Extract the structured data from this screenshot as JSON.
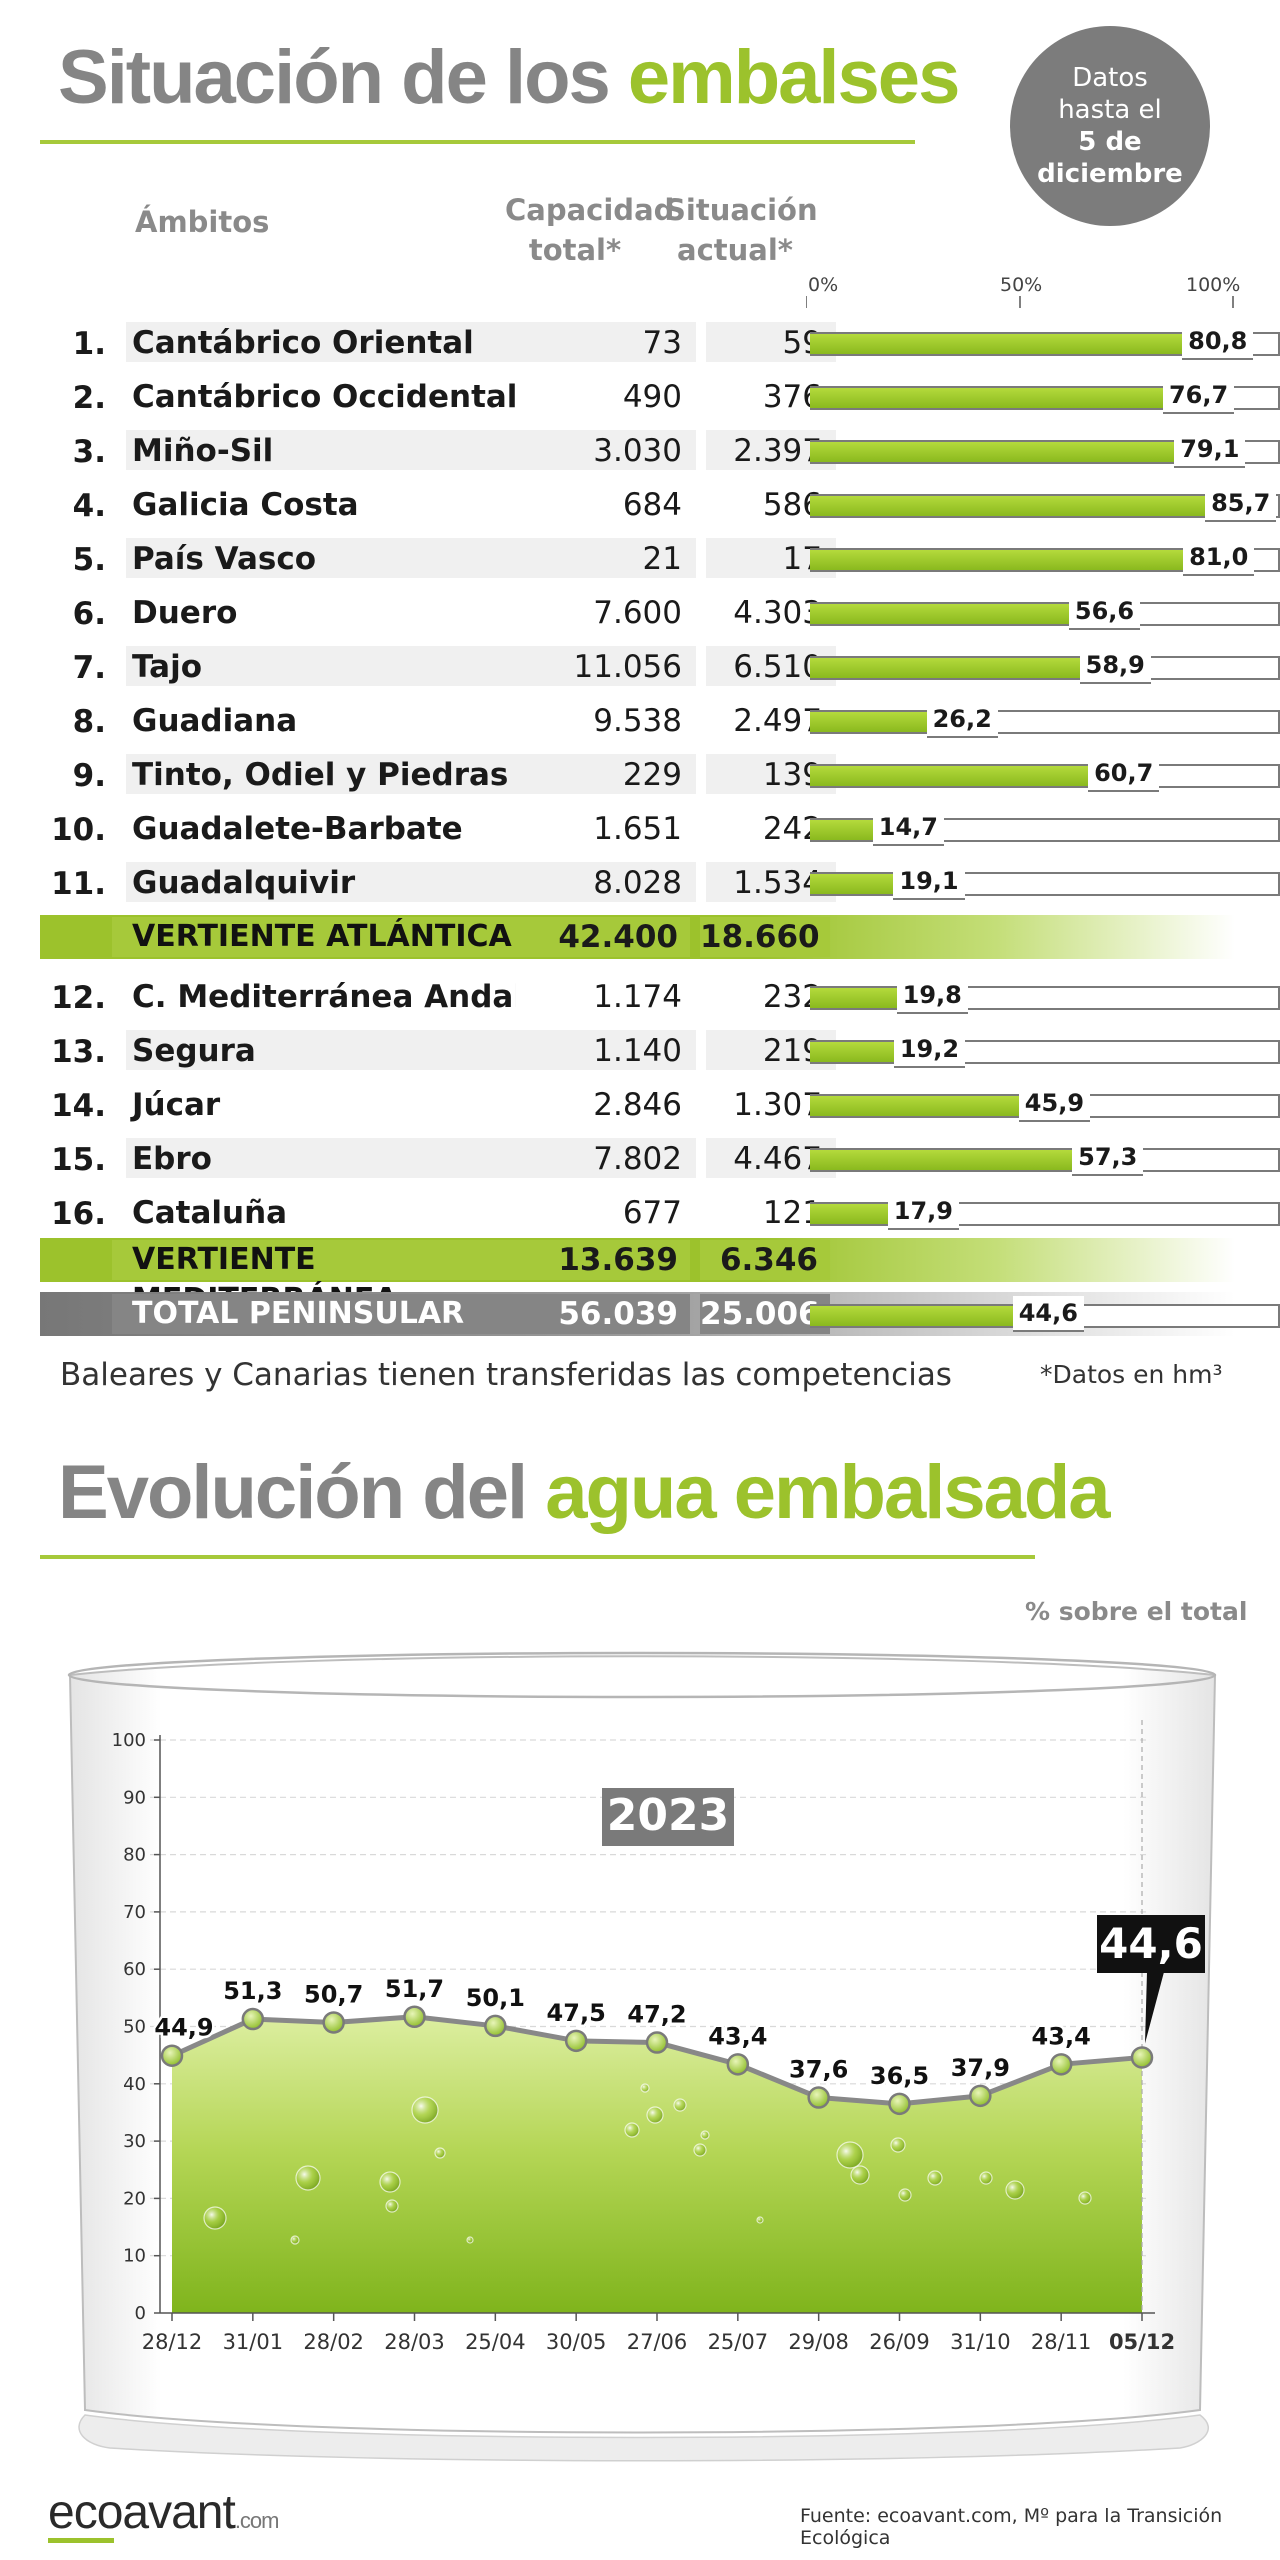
{
  "header": {
    "title_gray": "Situación de los",
    "title_green": "embalses",
    "badge_line1": "Datos",
    "badge_line2": "hasta el",
    "badge_line3": "5 de",
    "badge_line4": "diciembre"
  },
  "table": {
    "col_ambitos": "Ámbitos",
    "col_capacidad_1": "Capacidad",
    "col_capacidad_2": "total*",
    "col_situacion_1": "Situación",
    "col_situacion_2": "actual*",
    "axis_0": "0%",
    "axis_50": "50%",
    "axis_100": "100%",
    "rows": [
      {
        "num": "1.",
        "name": "Cantábrico Oriental",
        "cap": "73",
        "act": "59",
        "pct": 80.8,
        "pct_label": "80,8"
      },
      {
        "num": "2.",
        "name": "Cantábrico Occidental",
        "cap": "490",
        "act": "376",
        "pct": 76.7,
        "pct_label": "76,7"
      },
      {
        "num": "3.",
        "name": "Miño-Sil",
        "cap": "3.030",
        "act": "2.397",
        "pct": 79.1,
        "pct_label": "79,1"
      },
      {
        "num": "4.",
        "name": "Galicia Costa",
        "cap": "684",
        "act": "586",
        "pct": 85.7,
        "pct_label": "85,7"
      },
      {
        "num": "5.",
        "name": "País Vasco",
        "cap": "21",
        "act": "17",
        "pct": 81.0,
        "pct_label": "81,0"
      },
      {
        "num": "6.",
        "name": "Duero",
        "cap": "7.600",
        "act": "4.303",
        "pct": 56.6,
        "pct_label": "56,6"
      },
      {
        "num": "7.",
        "name": "Tajo",
        "cap": "11.056",
        "act": "6.510",
        "pct": 58.9,
        "pct_label": "58,9"
      },
      {
        "num": "8.",
        "name": "Guadiana",
        "cap": "9.538",
        "act": "2.497",
        "pct": 26.2,
        "pct_label": "26,2"
      },
      {
        "num": "9.",
        "name": "Tinto, Odiel y Piedras",
        "cap": "229",
        "act": "139",
        "pct": 60.7,
        "pct_label": "60,7"
      },
      {
        "num": "10.",
        "name": "Guadalete-Barbate",
        "cap": "1.651",
        "act": "242",
        "pct": 14.7,
        "pct_label": "14,7"
      },
      {
        "num": "11.",
        "name": "Guadalquivir",
        "cap": "8.028",
        "act": "1.534",
        "pct": 19.1,
        "pct_label": "19,1"
      },
      {
        "num": "12.",
        "name": "C. Mediterránea Andaluza",
        "cap": "1.174",
        "act": "232",
        "pct": 19.8,
        "pct_label": "19,8"
      },
      {
        "num": "13.",
        "name": "Segura",
        "cap": "1.140",
        "act": "219",
        "pct": 19.2,
        "pct_label": "19,2"
      },
      {
        "num": "14.",
        "name": "Júcar",
        "cap": "2.846",
        "act": "1.307",
        "pct": 45.9,
        "pct_label": "45,9"
      },
      {
        "num": "15.",
        "name": "Ebro",
        "cap": "7.802",
        "act": "4.467",
        "pct": 57.3,
        "pct_label": "57,3"
      },
      {
        "num": "16.",
        "name": "Cataluña",
        "cap": "677",
        "act": "121",
        "pct": 17.9,
        "pct_label": "17,9"
      }
    ],
    "atlantica": {
      "label": "VERTIENTE ATLÁNTICA",
      "cap": "42.400",
      "act": "18.660"
    },
    "mediterranea": {
      "label": "VERTIENTE MEDITERRÁNEA",
      "cap": "13.639",
      "act": "6.346"
    },
    "total": {
      "label": "TOTAL PENINSULAR",
      "cap": "56.039",
      "act": "25.006",
      "pct": 44.6,
      "pct_label": "44,6"
    },
    "note_left": "Baleares y Canarias tienen transferidas las competencias",
    "note_right": "*Datos en hm³"
  },
  "chart_section": {
    "title_gray": "Evolución del",
    "title_green": "agua embalsada",
    "unit_label": "% sobre el total"
  },
  "chart_data": {
    "type": "area",
    "title": "2023",
    "ylabel": "% sobre el total",
    "ylim": [
      0,
      100
    ],
    "yticks": [
      0,
      10,
      20,
      30,
      40,
      50,
      60,
      70,
      80,
      90,
      100
    ],
    "categories": [
      "28/12",
      "31/01",
      "28/02",
      "28/03",
      "25/04",
      "30/05",
      "27/06",
      "25/07",
      "29/08",
      "26/09",
      "31/10",
      "28/11",
      "05/12"
    ],
    "values": [
      44.9,
      51.3,
      50.7,
      51.7,
      50.1,
      47.5,
      47.2,
      43.4,
      37.6,
      36.5,
      37.9,
      43.4,
      44.6
    ],
    "value_labels": [
      "44,9",
      "51,3",
      "50,7",
      "51,7",
      "50,1",
      "47,5",
      "47,2",
      "43,4",
      "37,6",
      "36,5",
      "37,9",
      "43,4",
      "44,6"
    ],
    "highlight_label": "44,6"
  },
  "footer": {
    "logo_main": "ecoavant",
    "logo_suffix": ".com",
    "source": "Fuente: ecoavant.com, Mº para la Transición Ecológica"
  }
}
